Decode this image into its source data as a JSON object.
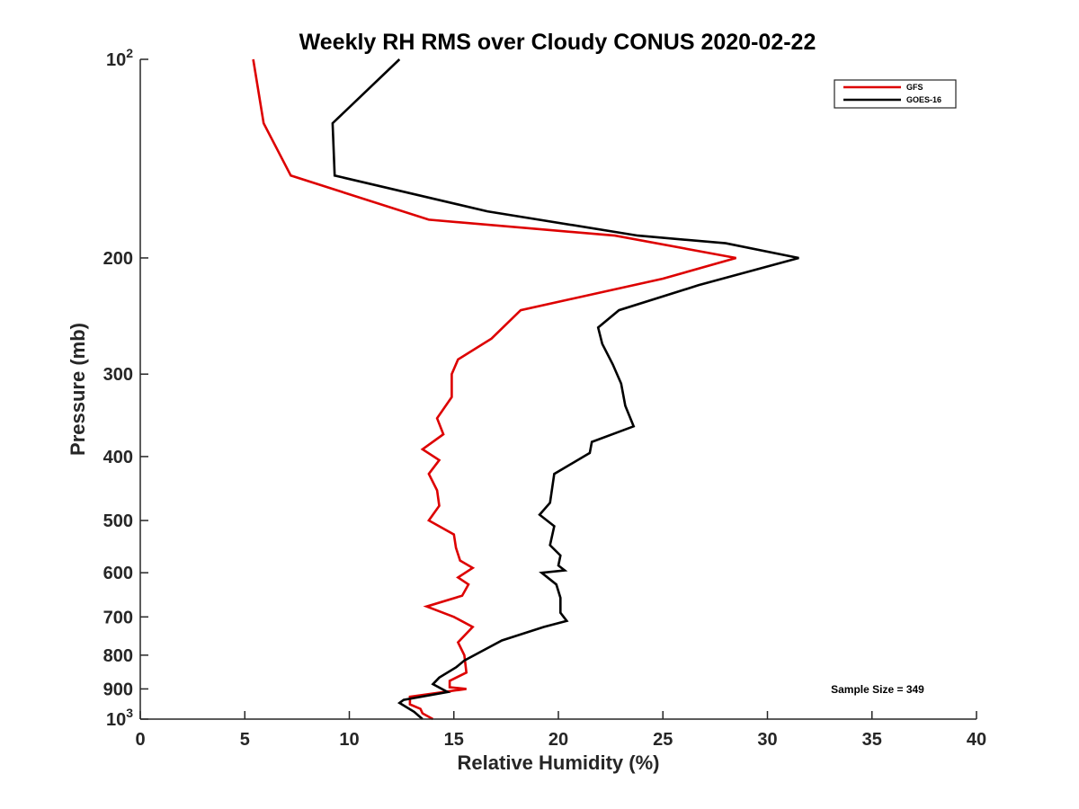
{
  "chart_data": {
    "type": "line",
    "title": "Weekly RH RMS over Cloudy CONUS 2020-02-22",
    "xlabel": "Relative Humidity (%)",
    "ylabel": "Pressure (mb)",
    "xlim": [
      0,
      40
    ],
    "ylim": [
      100,
      1000
    ],
    "yscale": "log",
    "y_reversed": true,
    "grid": false,
    "legend_position": "top-right",
    "x_ticks": [
      "0",
      "5",
      "10",
      "15",
      "20",
      "25",
      "30",
      "35",
      "40"
    ],
    "y_ticks": [
      {
        "value": 100,
        "base": "10",
        "exp": "2"
      },
      {
        "value": 200,
        "label": "200"
      },
      {
        "value": 300,
        "label": "300"
      },
      {
        "value": 400,
        "label": "400"
      },
      {
        "value": 500,
        "label": "500"
      },
      {
        "value": 600,
        "label": "600"
      },
      {
        "value": 700,
        "label": "700"
      },
      {
        "value": 800,
        "label": "800"
      },
      {
        "value": 900,
        "label": "900"
      },
      {
        "value": 1000,
        "base": "10",
        "exp": "3"
      }
    ],
    "series": [
      {
        "name": "GFS",
        "color": "#dd0000",
        "points": [
          [
            5.4,
            100
          ],
          [
            5.9,
            125
          ],
          [
            7.2,
            150
          ],
          [
            13.8,
            175
          ],
          [
            22.7,
            185
          ],
          [
            28.5,
            200
          ],
          [
            25.0,
            215
          ],
          [
            18.2,
            240
          ],
          [
            16.8,
            265
          ],
          [
            15.2,
            285
          ],
          [
            14.9,
            300
          ],
          [
            14.9,
            325
          ],
          [
            14.2,
            350
          ],
          [
            14.5,
            370
          ],
          [
            13.5,
            390
          ],
          [
            14.3,
            405
          ],
          [
            13.8,
            425
          ],
          [
            14.2,
            450
          ],
          [
            14.3,
            475
          ],
          [
            13.8,
            500
          ],
          [
            15.0,
            525
          ],
          [
            15.1,
            550
          ],
          [
            15.3,
            575
          ],
          [
            15.9,
            590
          ],
          [
            15.2,
            610
          ],
          [
            15.7,
            625
          ],
          [
            15.4,
            650
          ],
          [
            13.7,
            675
          ],
          [
            15.0,
            700
          ],
          [
            15.9,
            725
          ],
          [
            15.2,
            765
          ],
          [
            15.5,
            800
          ],
          [
            15.6,
            850
          ],
          [
            14.8,
            875
          ],
          [
            14.8,
            895
          ],
          [
            15.6,
            900
          ],
          [
            12.9,
            925
          ],
          [
            12.9,
            950
          ],
          [
            13.4,
            965
          ],
          [
            13.5,
            980
          ],
          [
            14.0,
            1000
          ]
        ]
      },
      {
        "name": "GOES-16",
        "color": "#000000",
        "points": [
          [
            12.4,
            100
          ],
          [
            9.2,
            125
          ],
          [
            9.3,
            150
          ],
          [
            16.6,
            170
          ],
          [
            23.8,
            185
          ],
          [
            28.0,
            190
          ],
          [
            31.5,
            200
          ],
          [
            26.7,
            220
          ],
          [
            22.9,
            240
          ],
          [
            21.9,
            255
          ],
          [
            22.1,
            270
          ],
          [
            22.6,
            290
          ],
          [
            23.0,
            310
          ],
          [
            23.2,
            335
          ],
          [
            23.6,
            360
          ],
          [
            21.6,
            380
          ],
          [
            21.5,
            395
          ],
          [
            19.8,
            425
          ],
          [
            19.6,
            470
          ],
          [
            19.1,
            490
          ],
          [
            19.8,
            510
          ],
          [
            19.6,
            545
          ],
          [
            20.1,
            565
          ],
          [
            20.0,
            585
          ],
          [
            20.3,
            595
          ],
          [
            19.2,
            600
          ],
          [
            19.9,
            625
          ],
          [
            20.1,
            655
          ],
          [
            20.1,
            690
          ],
          [
            20.4,
            710
          ],
          [
            19.3,
            725
          ],
          [
            17.3,
            760
          ],
          [
            16.3,
            790
          ],
          [
            15.5,
            815
          ],
          [
            15.1,
            835
          ],
          [
            14.3,
            865
          ],
          [
            14.0,
            885
          ],
          [
            14.7,
            910
          ],
          [
            12.6,
            935
          ],
          [
            12.4,
            945
          ],
          [
            13.1,
            975
          ],
          [
            13.5,
            1000
          ]
        ]
      }
    ],
    "legend": [
      "GFS",
      "GOES-16"
    ],
    "annotation": "Sample Size = 349"
  }
}
